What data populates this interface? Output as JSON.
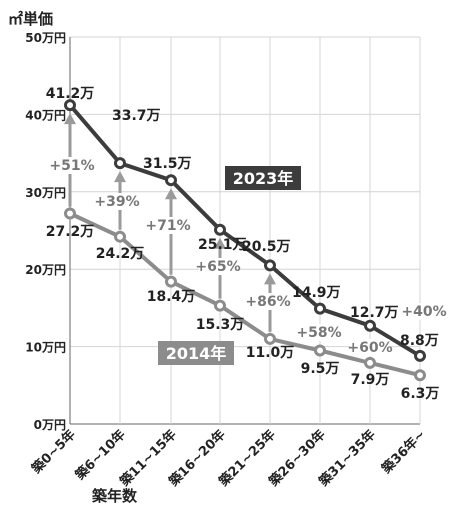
{
  "chart_data": {
    "type": "line",
    "ylabel": "㎡単価",
    "xlabel": "築年数",
    "ylim": [
      0,
      50
    ],
    "yticks": [
      "0万円",
      "10万円",
      "20万円",
      "30万円",
      "40万円",
      "50万円"
    ],
    "grid": true,
    "categories": [
      "築0~5年",
      "築6~10年",
      "築11~15年",
      "築16~20年",
      "築21~25年",
      "築26~30年",
      "築31~35年",
      "築36年~"
    ],
    "series": [
      {
        "name": "2023年",
        "color": "#3c3c3c",
        "values": [
          41.2,
          33.7,
          31.5,
          25.1,
          20.5,
          14.9,
          12.7,
          8.8
        ],
        "labels": [
          "41.2万",
          "33.7万",
          "31.5万",
          "25.1万",
          "20.5万",
          "14.9万",
          "12.7万",
          "8.8万"
        ]
      },
      {
        "name": "2014年",
        "color": "#8c8c8c",
        "values": [
          27.2,
          24.2,
          18.4,
          15.3,
          11.0,
          9.5,
          7.9,
          6.3
        ],
        "labels": [
          "27.2万",
          "24.2万",
          "18.4万",
          "15.3万",
          "11.0万",
          "9.5万",
          "7.9万",
          "6.3万"
        ]
      }
    ],
    "changes": [
      "+51%",
      "+39%",
      "+71%",
      "+65%",
      "+86%",
      "+58%",
      "+60%",
      "+40%"
    ]
  }
}
